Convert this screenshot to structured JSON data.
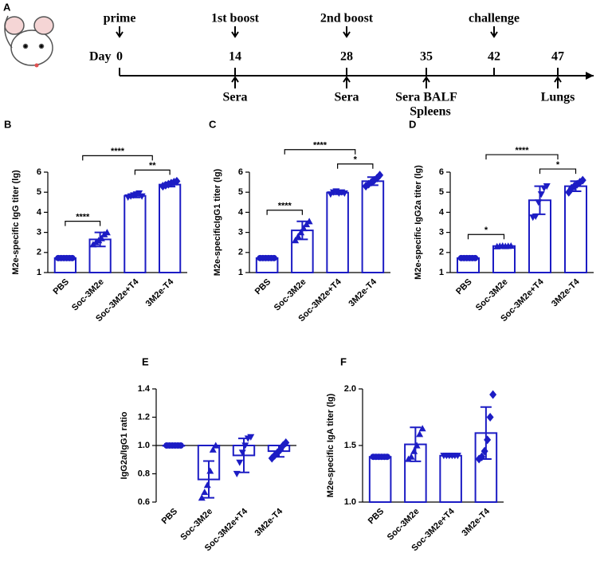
{
  "timeline": {
    "panel": "A",
    "day_label": "Day",
    "points": [
      {
        "day": "0",
        "above": "prime"
      },
      {
        "day": "14",
        "above": "1st boost",
        "below": [
          "Sera"
        ]
      },
      {
        "day": "28",
        "above": "2nd boost",
        "below": [
          "Sera"
        ]
      },
      {
        "day": "35",
        "below": [
          "Sera BALF",
          "Spleens"
        ]
      },
      {
        "day": "42",
        "above": "challenge"
      },
      {
        "day": "47",
        "below": [
          "Lungs"
        ]
      }
    ]
  },
  "chart_data": [
    {
      "type": "bar",
      "panel": "B",
      "ylabel": "M2e-specific IgG titer (lg)",
      "color": "#1c1cc4",
      "categories": [
        "PBS",
        "Soc-3M2e",
        "Soc-3M2e+T4",
        "3M2e-T4"
      ],
      "markers": [
        "circle",
        "triangle-up",
        "triangle-down",
        "diamond"
      ],
      "values": [
        1.72,
        2.65,
        4.82,
        5.38
      ],
      "errors": [
        0.02,
        0.35,
        0.08,
        0.1
      ],
      "points": [
        [
          1.72,
          1.72,
          1.72,
          1.72,
          1.72,
          1.72
        ],
        [
          2.4,
          2.5,
          2.6,
          2.7,
          2.9,
          3.0
        ],
        [
          4.75,
          4.8,
          4.85,
          4.9,
          4.95,
          4.8
        ],
        [
          5.3,
          5.35,
          5.4,
          5.45,
          5.5,
          5.55
        ]
      ],
      "significance": [
        "****",
        "**",
        "****"
      ],
      "ylim": [
        1,
        6
      ],
      "yticks": [
        1,
        2,
        3,
        4,
        5,
        6
      ]
    },
    {
      "type": "bar",
      "panel": "C",
      "ylabel": "M2e-specificIgG1 titer (lg)",
      "color": "#1c1cc4",
      "categories": [
        "PBS",
        "Soc-3M2e",
        "Soc-3M2e+T4",
        "3M2e-T4"
      ],
      "markers": [
        "circle",
        "triangle-up",
        "triangle-down",
        "diamond"
      ],
      "values": [
        1.72,
        3.1,
        4.98,
        5.55
      ],
      "errors": [
        0.02,
        0.45,
        0.08,
        0.2
      ],
      "points": [
        [
          1.72,
          1.72,
          1.72,
          1.72,
          1.72,
          1.72
        ],
        [
          2.6,
          2.8,
          3.0,
          3.2,
          3.4,
          3.55
        ],
        [
          4.9,
          5.0,
          5.05,
          4.95,
          5.0,
          4.95
        ],
        [
          5.3,
          5.4,
          5.5,
          5.6,
          5.7,
          5.85
        ]
      ],
      "significance": [
        "****",
        "*",
        "****"
      ],
      "ylim": [
        1,
        6
      ],
      "yticks": [
        1,
        2,
        3,
        4,
        5,
        6
      ]
    },
    {
      "type": "bar",
      "panel": "D",
      "ylabel": "M2e-specific IgG2a titer (lg)",
      "color": "#1c1cc4",
      "categories": [
        "PBS",
        "Soc-3M2e",
        "Soc-3M2e+T4",
        "3M2e-T4"
      ],
      "markers": [
        "circle",
        "triangle-up",
        "triangle-down",
        "diamond"
      ],
      "values": [
        1.72,
        2.32,
        4.6,
        5.3
      ],
      "errors": [
        0.02,
        0.02,
        0.7,
        0.25
      ],
      "points": [
        [
          1.72,
          1.72,
          1.72,
          1.72,
          1.72,
          1.72
        ],
        [
          2.3,
          2.32,
          2.33,
          2.31,
          2.32,
          2.33
        ],
        [
          3.75,
          3.8,
          4.5,
          4.9,
          5.2,
          5.3
        ],
        [
          5.0,
          5.2,
          5.3,
          5.4,
          5.5,
          5.6
        ]
      ],
      "significance": [
        "*",
        "*",
        "****"
      ],
      "ylim": [
        1,
        6
      ],
      "yticks": [
        1,
        2,
        3,
        4,
        5,
        6
      ]
    },
    {
      "type": "bar",
      "panel": "E",
      "ylabel": "IgG2a/IgG1 ratio",
      "color": "#1c1cc4",
      "categories": [
        "PBS",
        "Soc-3M2e",
        "Soc-3M2e+T4",
        "3M2e-T4"
      ],
      "markers": [
        "circle",
        "triangle-up",
        "triangle-down",
        "diamond"
      ],
      "values": [
        1.0,
        0.76,
        0.93,
        0.96
      ],
      "errors": [
        0.0,
        0.13,
        0.12,
        0.04
      ],
      "points": [
        [
          1.0,
          1.0,
          1.0,
          1.0,
          1.0,
          1.0
        ],
        [
          0.63,
          0.67,
          0.72,
          0.82,
          0.97,
          1.0
        ],
        [
          0.8,
          0.88,
          0.95,
          1.0,
          1.05,
          1.06
        ],
        [
          0.91,
          0.93,
          0.95,
          0.97,
          1.0,
          1.02
        ]
      ],
      "baseline": 1.0,
      "ylim": [
        0.6,
        1.4
      ],
      "yticks": [
        0.6,
        0.8,
        {
          "value": 1.0,
          "label": "1.0"
        },
        1.2,
        1.4
      ]
    },
    {
      "type": "bar",
      "panel": "F",
      "ylabel": "M2e-specific IgA titer (lg)",
      "color": "#1c1cc4",
      "categories": [
        "PBS",
        "Soc-3M2e",
        "Soc-3M2e+T4",
        "3M2e-T4"
      ],
      "markers": [
        "circle",
        "triangle-up",
        "triangle-down",
        "diamond"
      ],
      "values": [
        1.4,
        1.51,
        1.41,
        1.61
      ],
      "errors": [
        0.01,
        0.15,
        0.01,
        0.23
      ],
      "points": [
        [
          1.4,
          1.4,
          1.4,
          1.4,
          1.4,
          1.4
        ],
        [
          1.38,
          1.4,
          1.45,
          1.5,
          1.6,
          1.65
        ],
        [
          1.41,
          1.41,
          1.41,
          1.41,
          1.41,
          1.41
        ],
        [
          1.38,
          1.4,
          1.45,
          1.55,
          1.75,
          1.95
        ]
      ],
      "ylim": [
        1.0,
        2.0
      ],
      "yticks": [
        {
          "value": 1.0,
          "label": "1.0"
        },
        1.5,
        {
          "value": 2.0,
          "label": "2.0"
        }
      ]
    }
  ]
}
